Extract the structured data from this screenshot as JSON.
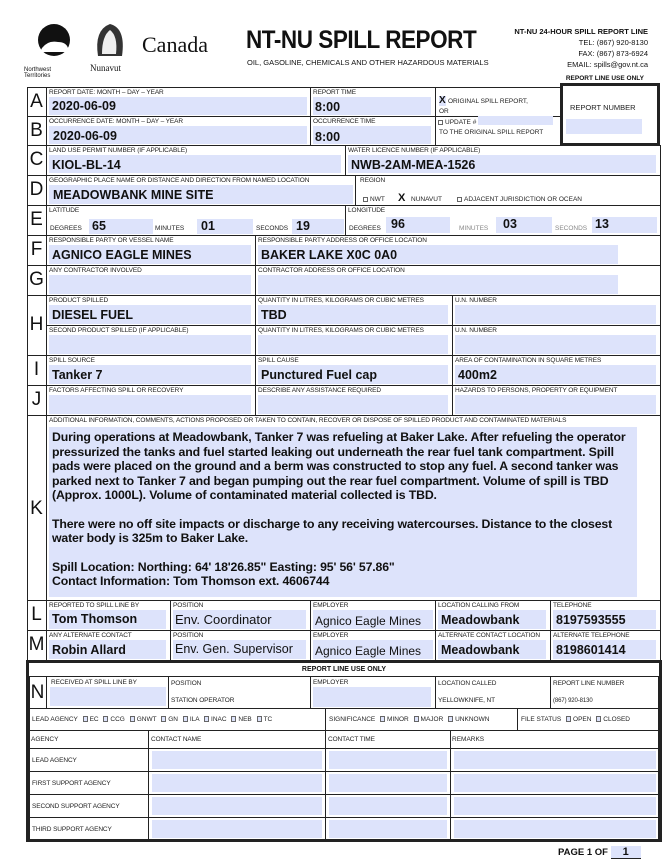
{
  "header": {
    "logo_nwt": "Northwest Territories",
    "logo_nu": "Nunavut",
    "logo_canada": "Canada",
    "title": "NT-NU SPILL REPORT",
    "subtitle": "OIL, GASOLINE, CHEMICALS AND OTHER HAZARDOUS MATERIALS",
    "line_title": "NT-NU 24-HOUR SPILL REPORT LINE",
    "tel": "TEL: (867) 920-8130",
    "fax": "FAX: (867) 873-6924",
    "email": "EMAIL: spills@gov.nt.ca",
    "report_line_use_only": "REPORT LINE USE ONLY"
  },
  "A": {
    "letter": "A",
    "date_label": "REPORT DATE: MONTH – DAY – YEAR",
    "date": "2020-06-09",
    "time_label": "REPORT TIME",
    "time": "8:00",
    "original_mark": "X",
    "original_label": "ORIGINAL SPILL REPORT,",
    "or": "OR",
    "report_number_label": "REPORT NUMBER"
  },
  "B": {
    "letter": "B",
    "date_label": "OCCURRENCE DATE: MONTH – DAY – YEAR",
    "date": "2020-06-09",
    "time_label": "OCCURRENCE TIME",
    "time": "8:00",
    "update_label": "UPDATE #",
    "to_original": "TO THE ORIGINAL SPILL REPORT"
  },
  "C": {
    "letter": "C",
    "permit_label": "LAND USE PERMIT NUMBER (IF APPLICABLE)",
    "permit": "KIOL-BL-14",
    "licence_label": "WATER LICENCE NUMBER (IF APPLICABLE)",
    "licence": "NWB-2AM-MEA-1526"
  },
  "D": {
    "letter": "D",
    "place_label": "GEOGRAPHIC PLACE NAME OR DISTANCE AND DIRECTION FROM NAMED LOCATION",
    "place": "MEADOWBANK MINE SITE",
    "region_label": "REGION",
    "nwt": "NWT",
    "nunavut_mark": "X",
    "nunavut": "NUNAVUT",
    "adjacent": "ADJACENT JURISDICTION OR OCEAN"
  },
  "E": {
    "letter": "E",
    "lat_label": "LATITUDE",
    "lon_label": "LONGITUDE",
    "degrees": "DEGREES",
    "minutes": "MINUTES",
    "seconds": "SECONDS",
    "lat_deg": "65",
    "lat_min": "01",
    "lat_sec": "19",
    "lon_deg": "96",
    "lon_min": "03",
    "lon_sec": "13"
  },
  "F": {
    "letter": "F",
    "party_label": "RESPONSIBLE PARTY OR VESSEL NAME",
    "party": "AGNICO EAGLE MINES",
    "address_label": "RESPONSIBLE PARTY ADDRESS OR OFFICE LOCATION",
    "address": "BAKER LAKE X0C 0A0"
  },
  "G": {
    "letter": "G",
    "contractor_label": "ANY CONTRACTOR INVOLVED",
    "address_label": "CONTRACTOR ADDRESS OR OFFICE LOCATION"
  },
  "H": {
    "letter": "H",
    "product_label": "PRODUCT SPILLED",
    "product": "DIESEL FUEL",
    "qty_label": "QUANTITY IN LITRES, KILOGRAMS OR CUBIC METRES",
    "qty": "TBD",
    "un_label": "U.N. NUMBER",
    "product2_label": "SECOND PRODUCT SPILLED (IF APPLICABLE)",
    "qty2_label": "QUANTITY IN LITRES, KILOGRAMS OR CUBIC METRES",
    "un2_label": "U.N. NUMBER"
  },
  "I": {
    "letter": "I",
    "source_label": "SPILL SOURCE",
    "source": "Tanker 7",
    "cause_label": "SPILL CAUSE",
    "cause": "Punctured Fuel cap",
    "area_label": "AREA OF CONTAMINATION IN SQUARE METRES",
    "area": "400m2"
  },
  "J": {
    "letter": "J",
    "factors_label": "FACTORS AFFECTING SPILL OR RECOVERY",
    "assist_label": "DESCRIBE ANY ASSISTANCE REQUIRED",
    "hazards_label": "HAZARDS TO PERSONS, PROPERTY OR EQUIPMENT"
  },
  "K": {
    "letter": "K",
    "label": "ADDITIONAL INFORMATION, COMMENTS, ACTIONS PROPOSED OR TAKEN TO CONTAIN, RECOVER OR DISPOSE OF SPILLED PRODUCT AND CONTAMINATED MATERIALS",
    "p1": "During operations at Meadowbank, Tanker 7 was refueling at Baker Lake.  After refueling the operator pressurized the tanks and fuel started leaking out underneath the rear fuel tank compartment.  Spill pads were placed on the ground and a berm was constructed to stop any fuel.  A second tanker was parked next to Tanker 7 and began pumping out the rear fuel compartment.  Volume of spill is TBD (Approx. 1000L).  Volume of contaminated material collected is TBD.",
    "p2": "There were no off site impacts or discharge to any receiving watercourses.  Distance to the closest water body is 325m to Baker Lake.",
    "p3": "Spill Location: Northing: 64' 18'26.85\"  Easting: 95' 56' 57.86\"",
    "p4": "Contact Information: Tom Thomson ext. 4606744"
  },
  "L": {
    "letter": "L",
    "reported_label": "REPORTED TO SPILL LINE BY",
    "reported": "Tom Thomson",
    "position_label": "POSITION",
    "position": "Env. Coordinator",
    "employer_label": "EMPLOYER",
    "employer": "Agnico Eagle Mines",
    "location_label": "LOCATION CALLING FROM",
    "location": "Meadowbank",
    "tel_label": "TELEPHONE",
    "tel": "8197593555"
  },
  "M": {
    "letter": "M",
    "alt_label": "ANY ALTERNATE CONTACT",
    "alt": "Robin Allard",
    "position_label": "POSITION",
    "position": "Env. Gen. Supervisor",
    "employer_label": "EMPLOYER",
    "employer": "Agnico Eagle Mines",
    "location_label": "ALTERNATE CONTACT",
    "location_label2": "LOCATION",
    "location": "Meadowbank",
    "tel_label": "ALTERNATE TELEPHONE",
    "tel": "8198601414"
  },
  "N": {
    "title": "REPORT LINE USE ONLY",
    "letter": "N",
    "received_label": "RECEIVED AT SPILL LINE BY",
    "position_label": "POSITION",
    "position": "STATION OPERATOR",
    "employer_label": "EMPLOYER",
    "location_label": "LOCATION CALLED",
    "location": "YELLOWKNIFE, NT",
    "number_label": "REPORT LINE NUMBER",
    "number": "(867) 920-8130",
    "lead_agency_label": "LEAD AGENCY",
    "agencies": [
      "EC",
      "CCG",
      "GNWT",
      "GN",
      "ILA",
      "INAC",
      "NEB",
      "TC"
    ],
    "significance_label": "SIGNIFICANCE",
    "significance": [
      "MINOR",
      "MAJOR",
      "UNKNOWN"
    ],
    "file_status_label": "FILE STATUS",
    "file_status": [
      "OPEN",
      "CLOSED"
    ],
    "columns": [
      "AGENCY",
      "CONTACT NAME",
      "CONTACT TIME",
      "REMARKS"
    ],
    "rows": [
      "LEAD AGENCY",
      "FIRST SUPPORT AGENCY",
      "SECOND SUPPORT AGENCY",
      "THIRD SUPPORT AGENCY"
    ]
  },
  "footer": {
    "page_label": "PAGE 1 OF",
    "page_total": "1"
  },
  "colors": {
    "field_fill": "#dde3fb",
    "border": "#222222"
  }
}
